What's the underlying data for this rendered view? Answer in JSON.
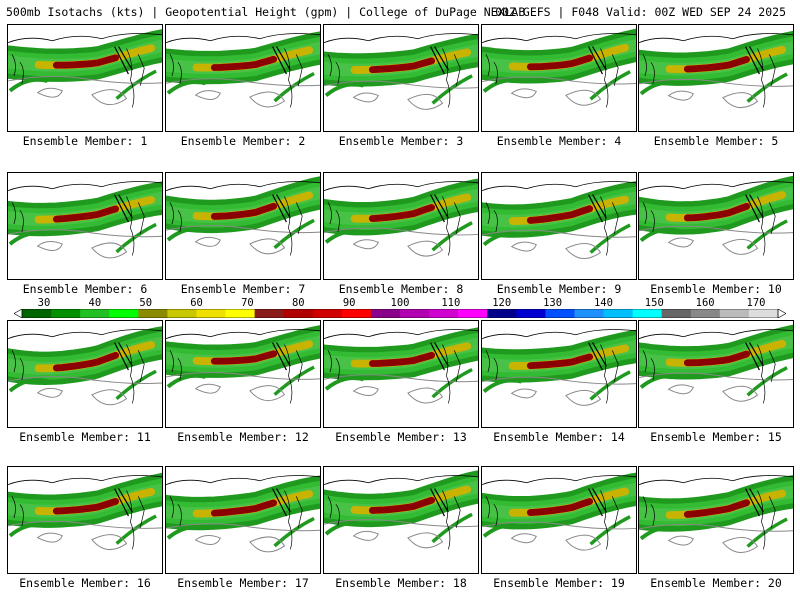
{
  "header": {
    "title_left": "500mb Isotachs (kts) | Geopotential Height (gpm) | College of DuPage NEXLAB",
    "title_right": "00Z GEFS | F048 Valid: 00Z WED SEP 24 2025"
  },
  "colorbar": {
    "ticks": [
      "30",
      "40",
      "50",
      "60",
      "70",
      "80",
      "90",
      "100",
      "110",
      "120",
      "130",
      "140",
      "150",
      "160",
      "170"
    ],
    "colors": [
      "#006400",
      "#009000",
      "#22c022",
      "#00ff00",
      "#8b8b00",
      "#c8c800",
      "#f0e000",
      "#ffff00",
      "#8b1a1a",
      "#b00000",
      "#d00000",
      "#ff0000",
      "#8b008b",
      "#b000b0",
      "#d000d0",
      "#ff00ff",
      "#00008b",
      "#0000d0",
      "#0050ff",
      "#1e90ff",
      "#00bfff",
      "#00ffff",
      "#666666",
      "#888888",
      "#bbbbbb",
      "#dddddd"
    ]
  },
  "members": [
    {
      "label": "Ensemble Member: 1"
    },
    {
      "label": "Ensemble Member: 2"
    },
    {
      "label": "Ensemble Member: 3"
    },
    {
      "label": "Ensemble Member: 4"
    },
    {
      "label": "Ensemble Member: 5"
    },
    {
      "label": "Ensemble Member: 6"
    },
    {
      "label": "Ensemble Member: 7"
    },
    {
      "label": "Ensemble Member: 8"
    },
    {
      "label": "Ensemble Member: 9"
    },
    {
      "label": "Ensemble Member: 10"
    },
    {
      "label": "Ensemble Member: 11"
    },
    {
      "label": "Ensemble Member: 12"
    },
    {
      "label": "Ensemble Member: 13"
    },
    {
      "label": "Ensemble Member: 14"
    },
    {
      "label": "Ensemble Member: 15"
    },
    {
      "label": "Ensemble Member: 16"
    },
    {
      "label": "Ensemble Member: 17"
    },
    {
      "label": "Ensemble Member: 18"
    },
    {
      "label": "Ensemble Member: 19"
    },
    {
      "label": "Ensemble Member: 20"
    }
  ],
  "map_colors": {
    "jet_outer": "#1f9a1f",
    "jet_mid": "#33bb33",
    "jet_inner": "#c8b400",
    "jet_core": "#8b0000",
    "contour": "#888888",
    "coast": "#000000"
  }
}
